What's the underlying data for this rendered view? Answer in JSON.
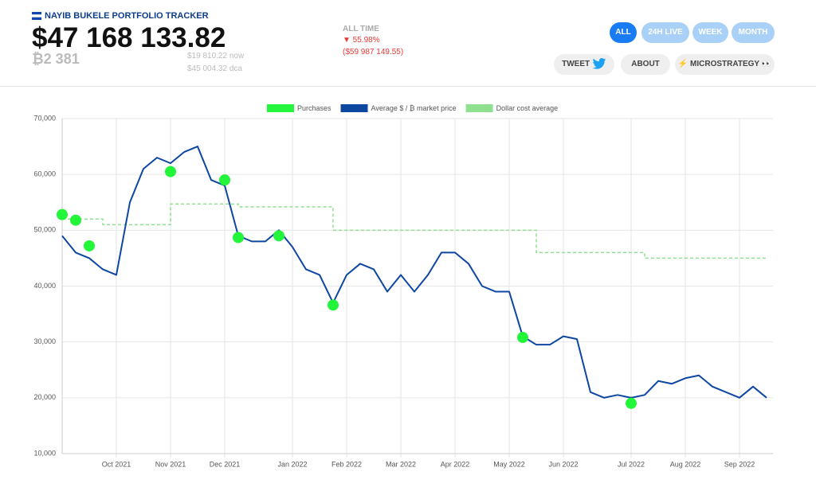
{
  "header": {
    "title": "NAYIB BUKELE PORTFOLIO TRACKER",
    "total": "$47 168 133.82",
    "btc": "₿2 381",
    "now": "$19 810.22",
    "now_unit": "now",
    "dca": "$45 004.32",
    "dca_unit": "dca",
    "period": "ALL TIME",
    "change_pct": "▼ 55.98%",
    "change_usd": "($59 987 149.55)"
  },
  "nav": [
    "ALL",
    "24H LIVE",
    "WEEK",
    "MONTH"
  ],
  "actions": [
    "TWEET",
    "ABOUT",
    "⚡ MICROSTRATEGY 👀"
  ],
  "chart_data": {
    "type": "line",
    "categories": [
      null,
      null,
      null,
      null,
      "Oct 2021",
      null,
      null,
      null,
      "Nov 2021",
      null,
      null,
      null,
      "Dec 2021",
      null,
      null,
      null,
      null,
      "Jan 2022",
      null,
      null,
      null,
      "Feb 2022",
      null,
      null,
      null,
      "Mar 2022",
      null,
      null,
      null,
      "Apr 2022",
      null,
      null,
      null,
      "May 2022",
      null,
      null,
      null,
      "Jun 2022",
      null,
      null,
      null,
      null,
      "Jul 2022",
      null,
      null,
      null,
      "Aug 2022",
      null,
      null,
      null,
      "Sep 2022",
      null,
      null
    ],
    "series": [
      {
        "name": "Purchases",
        "color": "#22f53a",
        "kind": "dots",
        "values": [
          52800,
          51800,
          47200,
          null,
          null,
          null,
          null,
          null,
          60500,
          null,
          null,
          null,
          59000,
          48700,
          null,
          null,
          49000,
          null,
          null,
          null,
          36600,
          null,
          null,
          null,
          null,
          null,
          null,
          null,
          null,
          null,
          null,
          null,
          null,
          null,
          30800,
          null,
          null,
          null,
          null,
          null,
          null,
          null,
          19000,
          null,
          null,
          null,
          null,
          null,
          null,
          null,
          null,
          null,
          null
        ]
      },
      {
        "name": "Average $ / ₿ market price",
        "color": "#0d47a1",
        "kind": "line",
        "values": [
          49000,
          46000,
          45000,
          43000,
          42000,
          55000,
          61000,
          63000,
          62000,
          64000,
          65000,
          59000,
          58000,
          49000,
          48000,
          48000,
          50000,
          47000,
          43000,
          42000,
          37000,
          42000,
          44000,
          43000,
          39000,
          42000,
          39000,
          42000,
          46000,
          46000,
          44000,
          40000,
          39000,
          39000,
          31000,
          29500,
          29500,
          31000,
          30500,
          21000,
          20000,
          20500,
          20000,
          20500,
          23000,
          22500,
          23500,
          24000,
          22000,
          21000,
          20000,
          22000,
          20000
        ]
      },
      {
        "name": "Dollar cost average",
        "color": "#8fe08f",
        "kind": "step",
        "values": [
          52000,
          52000,
          52000,
          51000,
          51000,
          51000,
          51000,
          51000,
          54700,
          54700,
          54700,
          54700,
          54700,
          54200,
          54200,
          54200,
          54200,
          54200,
          54200,
          54200,
          50000,
          50000,
          50000,
          50000,
          50000,
          50000,
          50000,
          50000,
          50000,
          50000,
          50000,
          50000,
          50000,
          50000,
          50000,
          46000,
          46000,
          46000,
          46000,
          46000,
          46000,
          46000,
          46000,
          45000,
          45000,
          45000,
          45000,
          45000,
          45000,
          45000,
          45000,
          45000,
          45000
        ]
      }
    ],
    "ylim": [
      10000,
      70000
    ],
    "yticks": [
      {
        "value": 10000,
        "label": "10,000"
      },
      {
        "value": 20000,
        "label": "20,000"
      },
      {
        "value": 30000,
        "label": "30,000"
      },
      {
        "value": 40000,
        "label": "40,000"
      },
      {
        "value": 50000,
        "label": "50,000"
      },
      {
        "value": 60000,
        "label": "60,000"
      },
      {
        "value": 70000,
        "label": "70,000"
      }
    ],
    "grid": true,
    "legend": "top"
  }
}
